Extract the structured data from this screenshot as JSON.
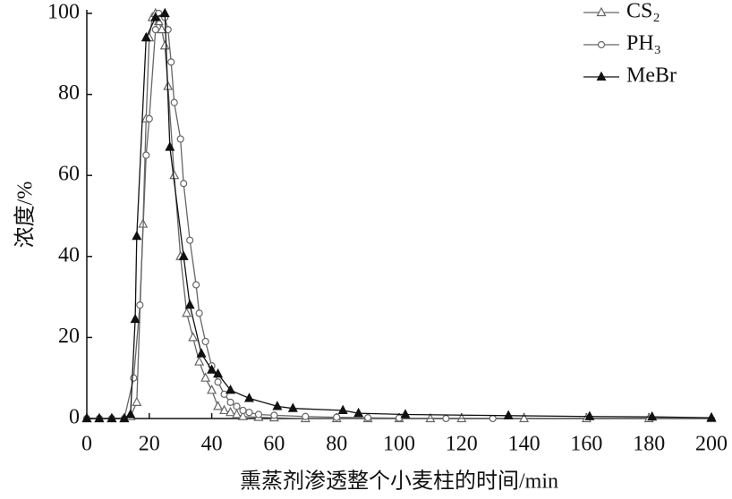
{
  "chart_data": {
    "type": "line",
    "y_label": "浓度/%",
    "x_label": "熏蒸剂渗透整个小麦柱的时间/min",
    "xlim": [
      0,
      200
    ],
    "xticks": [
      0,
      20,
      40,
      60,
      80,
      100,
      120,
      140,
      160,
      180,
      200
    ],
    "ylim": [
      0,
      100
    ],
    "yticks": [
      0,
      20,
      40,
      60,
      80,
      100
    ],
    "legend": "top-right",
    "series": [
      {
        "name": "CS₂",
        "color": "#666666",
        "marker": "triangle-open",
        "x": [
          0,
          4,
          8,
          12,
          14,
          16,
          18,
          19,
          20,
          21,
          22,
          23,
          24,
          25,
          26,
          28,
          30,
          32,
          34,
          36,
          38,
          40,
          42,
          44,
          46,
          48,
          50,
          55,
          60,
          70,
          80,
          90,
          100,
          110,
          120,
          140,
          160,
          180,
          200
        ],
        "values": [
          0,
          0,
          0,
          0,
          0.5,
          4,
          48,
          74,
          94,
          99,
          100,
          98,
          96,
          92,
          82,
          60,
          40,
          26,
          20,
          14,
          10,
          7,
          3,
          2,
          1.5,
          1,
          0.5,
          0.3,
          0.2,
          0,
          0,
          0,
          0,
          0,
          0,
          0,
          0,
          0,
          0
        ]
      },
      {
        "name": "PH₃",
        "color": "#666666",
        "marker": "circle-open",
        "x": [
          0,
          4,
          8,
          12,
          15,
          17,
          19,
          20,
          22,
          23,
          25,
          26,
          27,
          28,
          30,
          31,
          33,
          35,
          36,
          38,
          40,
          42,
          44,
          46,
          48,
          50,
          52,
          55,
          60,
          70,
          80,
          90,
          100,
          115,
          130
        ],
        "values": [
          0,
          0,
          0,
          0,
          10,
          28,
          65,
          74,
          96,
          100,
          99,
          96,
          88,
          78,
          69,
          58,
          44,
          33,
          26,
          19,
          13,
          9,
          6,
          4,
          3,
          2,
          1.5,
          1,
          0.8,
          0.5,
          0.3,
          0.2,
          0.1,
          0,
          0
        ]
      },
      {
        "name": "MeBr",
        "color": "#111111",
        "marker": "triangle-filled",
        "x": [
          0,
          4,
          8,
          12,
          14,
          15.5,
          16,
          19,
          22,
          25,
          26.6,
          31,
          33,
          36.7,
          40,
          42,
          46,
          52,
          61,
          66,
          82,
          87,
          102,
          135,
          161,
          181,
          200
        ],
        "values": [
          0,
          0,
          0,
          0,
          1,
          24.5,
          45,
          94,
          99,
          100,
          67,
          40,
          28,
          16,
          12,
          11,
          7,
          5,
          3,
          2.5,
          2,
          1.3,
          1,
          0.7,
          0.5,
          0.4,
          0.2
        ]
      }
    ]
  }
}
